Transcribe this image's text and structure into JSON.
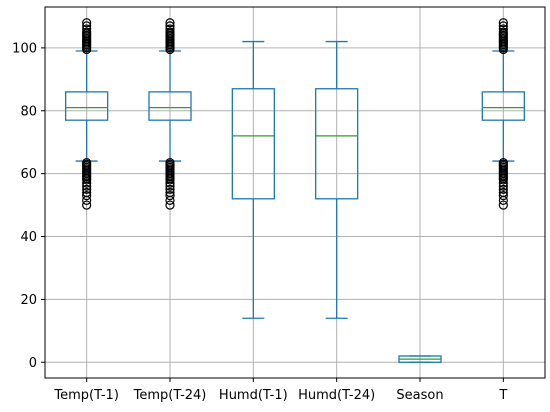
{
  "chart_data": {
    "type": "box",
    "title": "",
    "xlabel": "",
    "ylabel": "",
    "ylim": [
      -5,
      113
    ],
    "yticks": [
      0,
      20,
      40,
      60,
      80,
      100
    ],
    "grid": true,
    "colors": {
      "box": "#1f77b4",
      "median": "#2ca02c",
      "outlier": "#000000",
      "grid": "#b0b0b0"
    },
    "categories": [
      "Temp(T-1)",
      "Temp(T-24)",
      "Humd(T-1)",
      "Humd(T-24)",
      "Season",
      "T"
    ],
    "boxes": [
      {
        "name": "Temp(T-1)",
        "whisker_low": 64,
        "q1": 77,
        "median": 81,
        "q3": 86,
        "whisker_high": 99,
        "outliers": [
          50,
          51.5,
          53,
          54,
          55,
          56,
          57,
          58,
          58.5,
          59,
          59.5,
          60,
          60.5,
          61,
          61.5,
          62,
          62.5,
          63,
          63.5,
          99.5,
          100,
          100.5,
          101,
          101.5,
          102,
          102.5,
          103,
          103.5,
          104,
          104.5,
          105,
          106,
          107,
          108
        ]
      },
      {
        "name": "Temp(T-24)",
        "whisker_low": 64,
        "q1": 77,
        "median": 81,
        "q3": 86,
        "whisker_high": 99,
        "outliers": [
          50,
          51.5,
          53,
          54,
          55,
          56,
          57,
          58,
          58.5,
          59,
          59.5,
          60,
          60.5,
          61,
          61.5,
          62,
          62.5,
          63,
          63.5,
          99.5,
          100,
          100.5,
          101,
          101.5,
          102,
          102.5,
          103,
          103.5,
          104,
          104.5,
          105,
          106,
          107,
          108
        ]
      },
      {
        "name": "Humd(T-1)",
        "whisker_low": 14,
        "q1": 52,
        "median": 72,
        "q3": 87,
        "whisker_high": 102,
        "outliers": []
      },
      {
        "name": "Humd(T-24)",
        "whisker_low": 14,
        "q1": 52,
        "median": 72,
        "q3": 87,
        "whisker_high": 102,
        "outliers": []
      },
      {
        "name": "Season",
        "whisker_low": 0,
        "q1": 0,
        "median": 1,
        "q3": 2,
        "whisker_high": 2,
        "outliers": []
      },
      {
        "name": "T",
        "whisker_low": 64,
        "q1": 77,
        "median": 81,
        "q3": 86,
        "whisker_high": 99,
        "outliers": [
          50,
          51.5,
          53,
          54,
          55,
          56,
          57,
          58,
          58.5,
          59,
          59.5,
          60,
          60.5,
          61,
          61.5,
          62,
          62.5,
          63,
          63.5,
          99.5,
          100,
          100.5,
          101,
          101.5,
          102,
          102.5,
          103,
          103.5,
          104,
          104.5,
          105,
          106,
          107,
          108
        ]
      }
    ]
  }
}
